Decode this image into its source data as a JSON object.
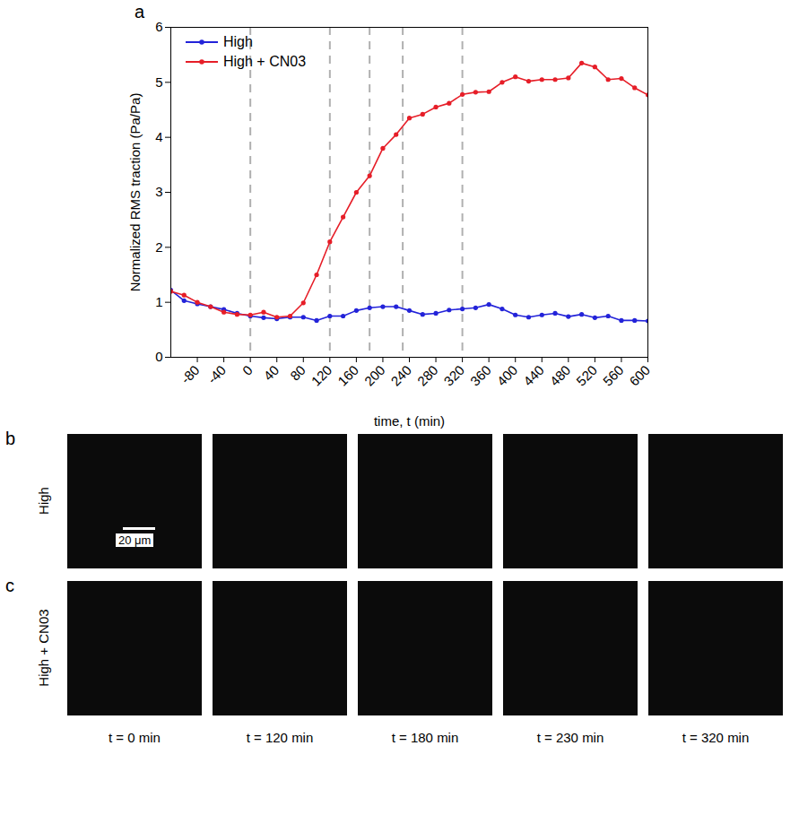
{
  "chart_data": {
    "type": "line",
    "panel_label": "a",
    "x_label": "time, t (min)",
    "y_label": "Normalized RMS traction (Pa/Pa)",
    "x": [
      -120,
      -100,
      -80,
      -60,
      -40,
      -20,
      0,
      20,
      40,
      60,
      80,
      100,
      120,
      140,
      160,
      180,
      200,
      220,
      240,
      260,
      280,
      300,
      320,
      340,
      360,
      380,
      400,
      420,
      440,
      460,
      480,
      500,
      520,
      540,
      560,
      580,
      600
    ],
    "series": [
      {
        "name": "High",
        "color": "#2323d9",
        "marker": "circle",
        "line_style": "solid",
        "values": [
          1.22,
          1.03,
          0.97,
          0.92,
          0.87,
          0.8,
          0.75,
          0.72,
          0.7,
          0.73,
          0.73,
          0.67,
          0.75,
          0.75,
          0.85,
          0.9,
          0.92,
          0.92,
          0.85,
          0.78,
          0.8,
          0.86,
          0.88,
          0.9,
          0.96,
          0.88,
          0.77,
          0.73,
          0.77,
          0.8,
          0.74,
          0.78,
          0.72,
          0.75,
          0.67,
          0.67,
          0.66
        ]
      },
      {
        "name": "High + CN03",
        "color": "#e61e28",
        "marker": "circle",
        "line_style": "solid",
        "values": [
          1.2,
          1.13,
          1.0,
          0.92,
          0.82,
          0.78,
          0.77,
          0.82,
          0.73,
          0.75,
          0.99,
          1.5,
          2.1,
          2.55,
          3.0,
          3.3,
          3.8,
          4.05,
          4.35,
          4.42,
          4.55,
          4.62,
          4.78,
          4.82,
          4.83,
          5.0,
          5.1,
          5.02,
          5.05,
          5.05,
          5.08,
          5.35,
          5.28,
          5.05,
          5.07,
          4.9,
          4.77
        ]
      }
    ],
    "vlines": [
      0,
      120,
      180,
      230,
      320
    ],
    "xlim": [
      -120,
      600
    ],
    "xticks": [
      -80,
      -40,
      0,
      40,
      80,
      120,
      160,
      200,
      240,
      280,
      320,
      360,
      400,
      440,
      480,
      520,
      560,
      600
    ],
    "ylim": [
      0,
      6
    ],
    "yticks": [
      0,
      1,
      2,
      3,
      4,
      5,
      6
    ],
    "grid": false,
    "legend": "top-left"
  },
  "image_panels": {
    "rows": [
      {
        "letter": "b",
        "label": "High"
      },
      {
        "letter": "c",
        "label": "High + CN03"
      }
    ],
    "scale_bar": "20 μm",
    "time_labels": [
      "t = 0 min",
      "t = 120 min",
      "t = 180 min",
      "t = 230 min",
      "t = 320 min"
    ]
  }
}
